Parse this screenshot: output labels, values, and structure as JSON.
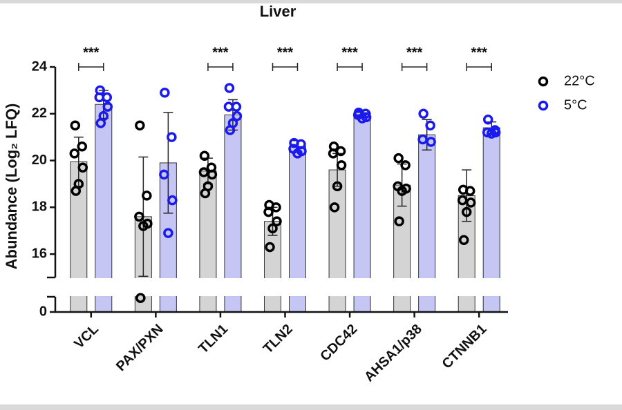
{
  "chart_data": {
    "type": "bar",
    "title": "Liver",
    "y_label": "Abundance (Log₂ LFQ)",
    "categories": [
      "VCL",
      "PAX/PXN",
      "TLN1",
      "TLN2",
      "CDC42",
      "AHSA1/p38",
      "CTNNB1"
    ],
    "ylim": [
      0,
      24
    ],
    "y_break": [
      0.65,
      15
    ],
    "yticks": [
      0,
      16,
      18,
      20,
      22,
      24
    ],
    "grid": false,
    "legend_position": "right",
    "significance": [
      "***",
      null,
      "***",
      "***",
      "***",
      "***",
      "***"
    ],
    "series": [
      {
        "name": "22°C",
        "color": "#d4d4d4",
        "point_color": "#000000",
        "values": [
          19.95,
          17.6,
          19.55,
          17.4,
          19.6,
          18.95,
          18.5
        ],
        "errors": [
          1.05,
          2.55,
          0.55,
          0.6,
          0.7,
          0.9,
          1.1
        ],
        "points": [
          [
            21.5,
            20.6,
            20.3,
            19.7,
            19.0,
            18.7
          ],
          [
            21.5,
            18.5,
            17.6,
            17.3,
            17.2,
            0.6
          ],
          [
            20.2,
            19.7,
            19.5,
            19.4,
            18.9,
            18.6
          ],
          [
            18.1,
            18.0,
            17.8,
            17.4,
            17.1,
            16.3
          ],
          [
            20.6,
            20.4,
            20.3,
            19.8,
            18.9,
            18.0
          ],
          [
            20.1,
            19.8,
            18.9,
            18.8,
            18.7,
            17.4
          ],
          [
            18.75,
            18.7,
            18.3,
            18.2,
            17.8,
            16.6
          ]
        ]
      },
      {
        "name": "5°C",
        "color": "#c6c6f5",
        "point_color": "#1a1aee",
        "values": [
          22.4,
          19.9,
          21.95,
          20.6,
          22.05,
          21.1,
          21.4
        ],
        "errors": [
          0.6,
          2.15,
          0.65,
          0.25,
          0.1,
          0.65,
          0.25
        ],
        "points": [
          [
            23.0,
            22.7,
            22.7,
            22.3,
            21.9,
            21.6
          ],
          [
            22.9,
            21.0,
            19.4,
            18.3,
            16.9
          ],
          [
            23.1,
            22.3,
            22.3,
            21.9,
            21.6,
            21.3
          ],
          [
            20.75,
            20.7,
            20.5,
            20.4,
            20.3
          ],
          [
            22.05,
            22.0,
            21.95,
            21.85,
            21.8
          ],
          [
            22.0,
            21.5,
            20.9,
            20.8
          ],
          [
            21.75,
            21.3,
            21.2,
            21.2,
            21.15
          ]
        ]
      }
    ]
  }
}
